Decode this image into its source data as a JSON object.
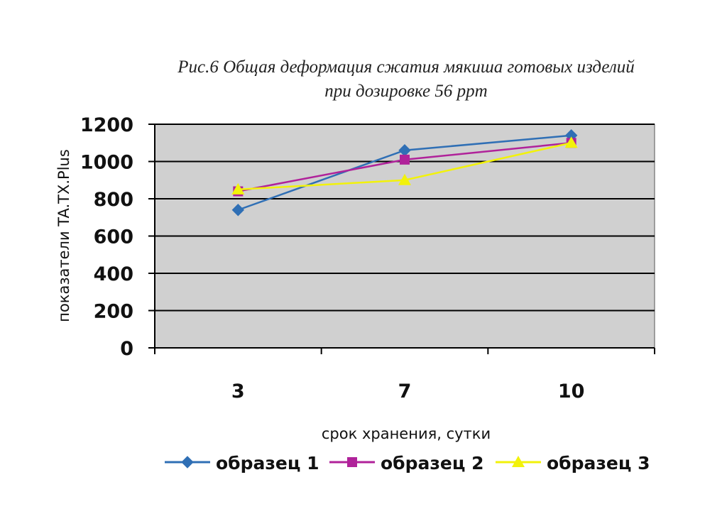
{
  "chart_data": {
    "type": "line",
    "title": "Рис.6 Общая деформация сжатия мякиша готовых изделий",
    "subtitle": "при дозировке 56 ppm",
    "xlabel": "срок хранения, сутки",
    "ylabel": "показатели TA.TX.Plus",
    "categories": [
      "3",
      "7",
      "10"
    ],
    "ylim": [
      0,
      1200
    ],
    "yticks": [
      0,
      200,
      400,
      600,
      800,
      1000,
      1200
    ],
    "grid": true,
    "legend_position": "bottom",
    "plot_background": "#d0d0d0",
    "series": [
      {
        "name": "образец 1",
        "values": [
          740,
          1060,
          1140
        ],
        "color": "#2f6fb5",
        "marker": "diamond"
      },
      {
        "name": "образец 2",
        "values": [
          840,
          1010,
          1100
        ],
        "color": "#b0229a",
        "marker": "square"
      },
      {
        "name": "образец 3",
        "values": [
          850,
          900,
          1100
        ],
        "color": "#f2f20a",
        "marker": "triangle"
      }
    ]
  }
}
